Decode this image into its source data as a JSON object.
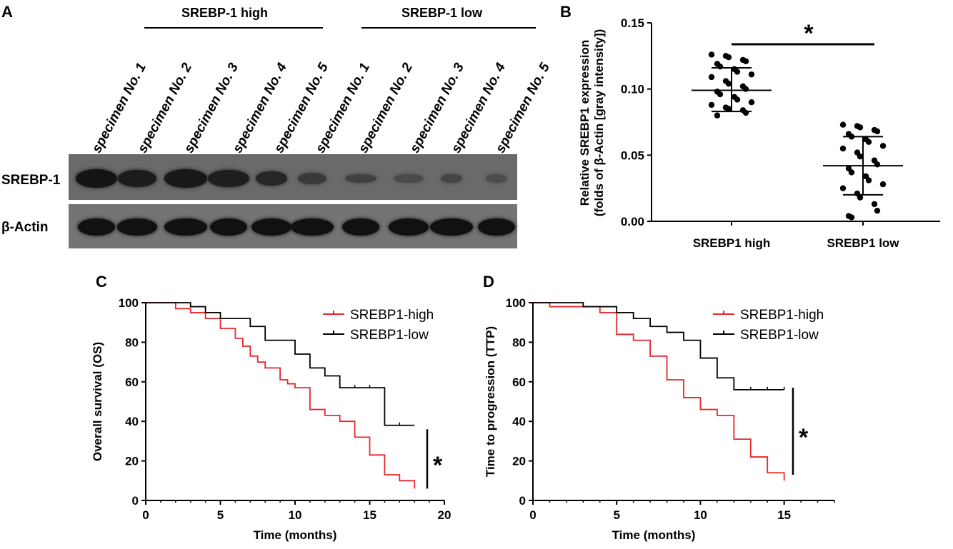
{
  "colors": {
    "high": "#e8262b",
    "low": "#000000",
    "blot_bg": "#6e6e6e"
  },
  "panelA": {
    "letter": "A",
    "group_high": "SREBP-1 high",
    "group_low": "SREBP-1 low",
    "lanes": [
      "specimen No. 1",
      "specimen No. 2",
      "specimen No. 3",
      "specimen No. 4",
      "specimen No. 5",
      "specimen No. 1",
      "specimen No. 2",
      "specimen No. 3",
      "specimen No. 4",
      "specimen No. 5"
    ],
    "row1_label": "SREBP-1",
    "row2_label": "β-Actin"
  },
  "panelB": {
    "letter": "B",
    "chart_data": {
      "type": "scatter",
      "ylabel_line1": "Relative SREBP1 expression",
      "ylabel_line2": "(folds of β-Actin [gray intensity])",
      "categories": [
        "SREBP1 high",
        "SREBP1 low"
      ],
      "ylim": [
        0,
        0.15
      ],
      "yticks": [
        "0.00",
        "0.05",
        "0.10",
        "0.15"
      ],
      "significance": "*",
      "groups": [
        {
          "name": "SREBP1 high",
          "mean": 0.099,
          "sd_low": 0.083,
          "sd_high": 0.116,
          "points": [
            0.126,
            0.125,
            0.124,
            0.122,
            0.121,
            0.119,
            0.117,
            0.115,
            0.113,
            0.111,
            0.109,
            0.106,
            0.104,
            0.102,
            0.1,
            0.098,
            0.096,
            0.094,
            0.092,
            0.09,
            0.088,
            0.086,
            0.085,
            0.084,
            0.082,
            0.08
          ]
        },
        {
          "name": "SREBP1 low",
          "mean": 0.042,
          "sd_low": 0.02,
          "sd_high": 0.064,
          "points": [
            0.073,
            0.072,
            0.071,
            0.069,
            0.068,
            0.066,
            0.064,
            0.062,
            0.06,
            0.057,
            0.055,
            0.052,
            0.049,
            0.046,
            0.043,
            0.04,
            0.037,
            0.034,
            0.031,
            0.028,
            0.025,
            0.021,
            0.018,
            0.013,
            0.008,
            0.004,
            0.003
          ]
        }
      ]
    }
  },
  "panelC": {
    "letter": "C",
    "chart_data": {
      "type": "line",
      "xlabel": "Time (months)",
      "ylabel": "Overall survival (OS)",
      "xlim": [
        0,
        20
      ],
      "ylim": [
        0,
        100
      ],
      "xticks": [
        "0",
        "5",
        "10",
        "15",
        "20"
      ],
      "yticks": [
        "0",
        "20",
        "40",
        "60",
        "80",
        "100"
      ],
      "significance": "*",
      "series": [
        {
          "name": "SREBP1-high",
          "key": "high",
          "steps": [
            [
              0,
              100
            ],
            [
              2,
              100
            ],
            [
              2,
              97
            ],
            [
              3,
              97
            ],
            [
              3,
              95
            ],
            [
              4,
              95
            ],
            [
              4,
              92
            ],
            [
              5,
              92
            ],
            [
              5,
              87
            ],
            [
              6,
              87
            ],
            [
              6,
              82
            ],
            [
              6.5,
              82
            ],
            [
              6.5,
              78
            ],
            [
              7,
              78
            ],
            [
              7,
              73
            ],
            [
              7.5,
              73
            ],
            [
              7.5,
              70
            ],
            [
              8,
              70
            ],
            [
              8,
              67
            ],
            [
              9,
              67
            ],
            [
              9,
              61
            ],
            [
              9.5,
              61
            ],
            [
              9.5,
              59
            ],
            [
              10,
              59
            ],
            [
              10,
              57
            ],
            [
              11,
              57
            ],
            [
              11,
              46
            ],
            [
              12,
              46
            ],
            [
              12,
              43
            ],
            [
              13,
              43
            ],
            [
              13,
              40
            ],
            [
              14,
              40
            ],
            [
              14,
              32
            ],
            [
              15,
              32
            ],
            [
              15,
              23
            ],
            [
              16,
              23
            ],
            [
              16,
              13
            ],
            [
              17,
              13
            ],
            [
              17,
              10
            ],
            [
              18,
              10
            ],
            [
              18,
              6
            ]
          ],
          "censors": []
        },
        {
          "name": "SREBP1-low",
          "key": "low",
          "steps": [
            [
              0,
              100
            ],
            [
              3,
              100
            ],
            [
              3,
              98
            ],
            [
              4,
              98
            ],
            [
              4,
              95
            ],
            [
              5,
              95
            ],
            [
              5,
              92
            ],
            [
              7,
              92
            ],
            [
              7,
              88
            ],
            [
              8,
              88
            ],
            [
              8,
              81
            ],
            [
              10,
              81
            ],
            [
              10,
              74
            ],
            [
              11,
              74
            ],
            [
              11,
              67
            ],
            [
              12,
              67
            ],
            [
              12,
              63
            ],
            [
              13,
              63
            ],
            [
              13,
              57
            ],
            [
              16,
              57
            ],
            [
              16,
              38
            ],
            [
              18,
              38
            ]
          ],
          "censors": [
            [
              14,
              57
            ],
            [
              15,
              57
            ],
            [
              17,
              38
            ]
          ]
        }
      ]
    }
  },
  "panelD": {
    "letter": "D",
    "chart_data": {
      "type": "line",
      "xlabel": "Time (months)",
      "ylabel": "Time to progression (TTP)",
      "xlim": [
        0,
        18
      ],
      "ylim": [
        0,
        100
      ],
      "xticks": [
        "0",
        "5",
        "10",
        "15"
      ],
      "yticks": [
        "0",
        "20",
        "40",
        "60",
        "80",
        "100"
      ],
      "significance": "*",
      "series": [
        {
          "name": "SREBP1-high",
          "key": "high",
          "steps": [
            [
              0,
              100
            ],
            [
              1,
              100
            ],
            [
              1,
              98
            ],
            [
              4,
              98
            ],
            [
              4,
              95
            ],
            [
              5,
              95
            ],
            [
              5,
              84
            ],
            [
              6,
              84
            ],
            [
              6,
              81
            ],
            [
              7,
              81
            ],
            [
              7,
              73
            ],
            [
              8,
              73
            ],
            [
              8,
              61
            ],
            [
              9,
              61
            ],
            [
              9,
              52
            ],
            [
              10,
              52
            ],
            [
              10,
              46
            ],
            [
              11,
              46
            ],
            [
              11,
              43
            ],
            [
              12,
              43
            ],
            [
              12,
              31
            ],
            [
              13,
              31
            ],
            [
              13,
              22
            ],
            [
              14,
              22
            ],
            [
              14,
              14
            ],
            [
              15,
              14
            ],
            [
              15,
              10
            ]
          ],
          "censors": []
        },
        {
          "name": "SREBP1-low",
          "key": "low",
          "steps": [
            [
              0,
              100
            ],
            [
              3,
              100
            ],
            [
              3,
              98
            ],
            [
              5,
              98
            ],
            [
              5,
              95
            ],
            [
              6,
              95
            ],
            [
              6,
              92
            ],
            [
              7,
              92
            ],
            [
              7,
              88
            ],
            [
              8,
              88
            ],
            [
              8,
              85
            ],
            [
              9,
              85
            ],
            [
              9,
              81
            ],
            [
              10,
              81
            ],
            [
              10,
              72
            ],
            [
              11,
              72
            ],
            [
              11,
              62
            ],
            [
              12,
              62
            ],
            [
              12,
              56
            ],
            [
              15,
              56
            ]
          ],
          "censors": [
            [
              13,
              56
            ],
            [
              14,
              56
            ],
            [
              15,
              56
            ]
          ]
        }
      ]
    }
  }
}
